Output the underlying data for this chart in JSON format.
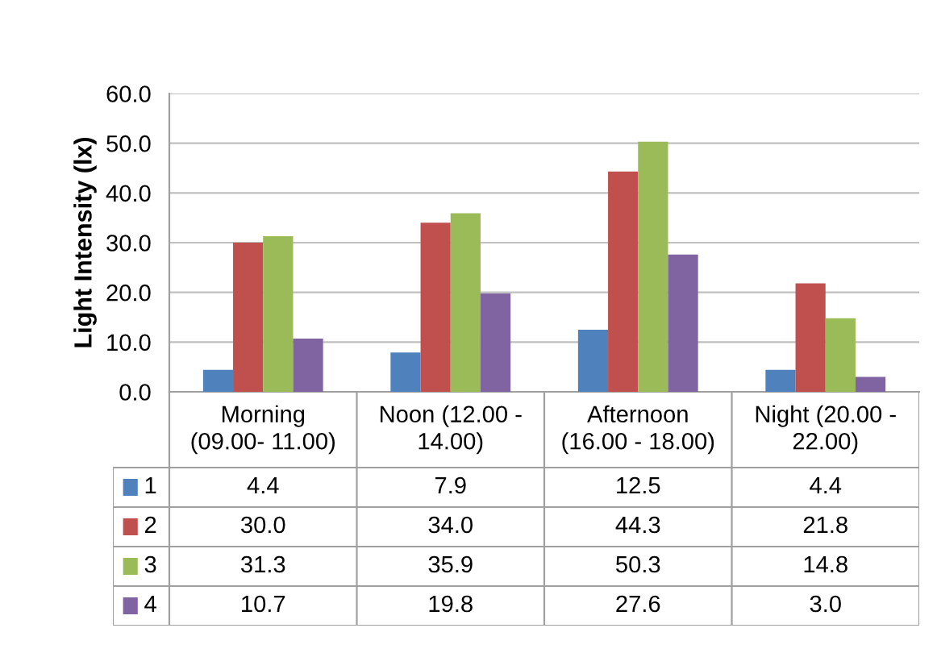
{
  "chart_data": {
    "type": "bar",
    "ylabel": "Light Intensity (lx)",
    "categories": [
      "Morning\n(09.00- 11.00)",
      "Noon (12.00 -\n14.00)",
      "Afternoon\n(16.00 - 18.00)",
      "Night (20.00 -\n22.00)"
    ],
    "series": [
      {
        "name": "1",
        "color": "#4f81bd",
        "values": [
          4.4,
          7.9,
          12.5,
          4.4
        ],
        "value_labels": [
          "4.4",
          "7.9",
          "12.5",
          "4.4"
        ]
      },
      {
        "name": "2",
        "color": "#c0504d",
        "values": [
          30.0,
          34.0,
          44.3,
          21.8
        ],
        "value_labels": [
          "30.0",
          "34.0",
          "44.3",
          "21.8"
        ]
      },
      {
        "name": "3",
        "color": "#9bbb59",
        "values": [
          31.3,
          35.9,
          50.3,
          14.8
        ],
        "value_labels": [
          "31.3",
          "35.9",
          "50.3",
          "14.8"
        ]
      },
      {
        "name": "4",
        "color": "#8064a2",
        "values": [
          10.7,
          19.8,
          27.6,
          3.0
        ],
        "value_labels": [
          "10.7",
          "19.8",
          "27.6",
          "3.0"
        ]
      }
    ],
    "ylim": [
      0,
      60
    ],
    "yticks": [
      {
        "value": 0,
        "label": "0.0"
      },
      {
        "value": 10,
        "label": "10.0"
      },
      {
        "value": 20,
        "label": "20.0"
      },
      {
        "value": 30,
        "label": "30.0"
      },
      {
        "value": 40,
        "label": "40.0"
      },
      {
        "value": 50,
        "label": "50.0"
      },
      {
        "value": 60,
        "label": "60.0"
      }
    ],
    "grid": "y",
    "legend": "bottom left"
  }
}
